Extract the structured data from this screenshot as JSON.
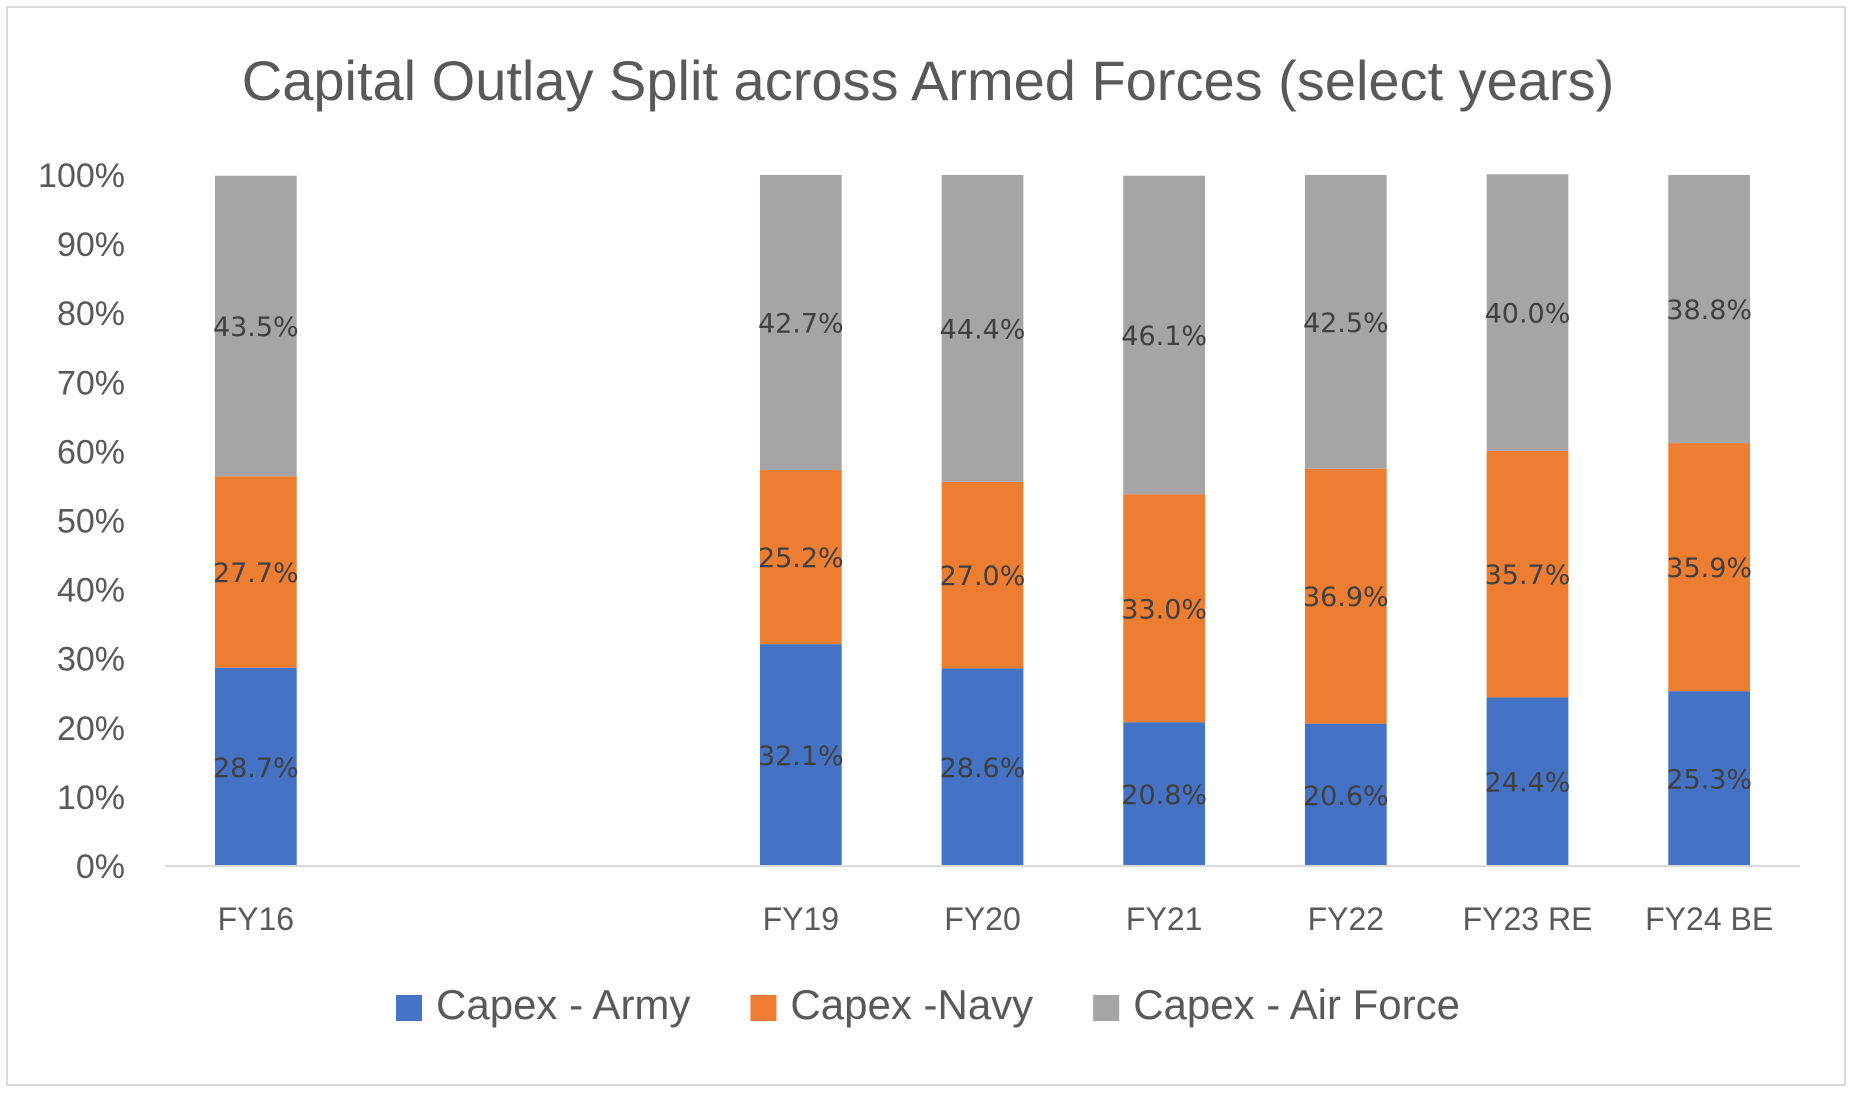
{
  "chart_data": {
    "type": "bar",
    "stacked": true,
    "title": "Capital Outlay Split across Armed Forces (select years)",
    "xlabel": "",
    "ylabel": "",
    "ylim": [
      0,
      100
    ],
    "y_ticks": [
      "0%",
      "10%",
      "20%",
      "30%",
      "40%",
      "50%",
      "60%",
      "70%",
      "80%",
      "90%",
      "100%"
    ],
    "categories": [
      "FY16",
      "",
      "",
      "FY19",
      "FY20",
      "FY21",
      "FY22",
      "FY23 RE",
      "FY24 BE"
    ],
    "series": [
      {
        "name": "Capex - Army",
        "color": "#4472c4",
        "values": [
          28.7,
          null,
          null,
          32.1,
          28.6,
          20.8,
          20.6,
          24.4,
          25.3
        ],
        "labels": [
          "28.7%",
          "",
          "",
          "32.1%",
          "28.6%",
          "20.8%",
          "20.6%",
          "24.4%",
          "25.3%"
        ]
      },
      {
        "name": "Capex -Navy",
        "color": "#ed7d31",
        "values": [
          27.7,
          null,
          null,
          25.2,
          27.0,
          33.0,
          36.9,
          35.7,
          35.9
        ],
        "labels": [
          "27.7%",
          "",
          "",
          "25.2%",
          "27.0%",
          "33.0%",
          "36.9%",
          "35.7%",
          "35.9%"
        ]
      },
      {
        "name": "Capex - Air Force",
        "color": "#a5a5a5",
        "values": [
          43.5,
          null,
          null,
          42.7,
          44.4,
          46.1,
          42.5,
          40.0,
          38.8
        ],
        "labels": [
          "43.5%",
          "",
          "",
          "42.7%",
          "44.4%",
          "46.1%",
          "42.5%",
          "40.0%",
          "38.8%"
        ]
      }
    ],
    "grid": false,
    "legend": "bottom"
  }
}
